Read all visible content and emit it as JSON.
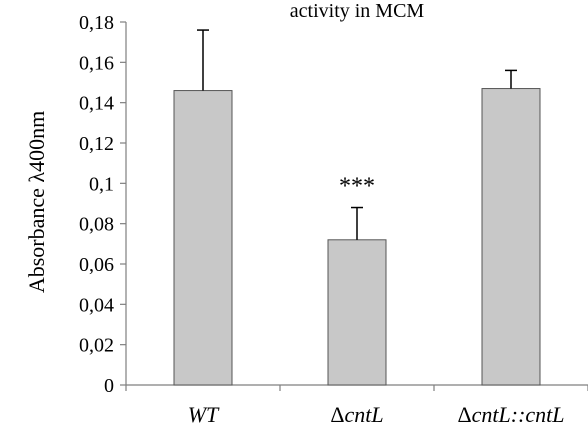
{
  "chart_data": {
    "type": "bar",
    "title": "activity in MCM",
    "ylabel": "Absorbance λ400nm",
    "xlabel": "",
    "categories": [
      "WT",
      "ΔcntL",
      "ΔcntL::cntL"
    ],
    "category_labels": [
      {
        "prefix": "",
        "italic": "WT"
      },
      {
        "prefix": "Δ",
        "italic": "cntL"
      },
      {
        "prefix": "Δ",
        "italic": "cntL::cntL"
      }
    ],
    "values": [
      0.146,
      0.072,
      0.147
    ],
    "error_bars": [
      0.03,
      0.016,
      0.009
    ],
    "annotations": [
      "",
      "***",
      ""
    ],
    "ylim": [
      0,
      0.18
    ],
    "y_ticks": [
      "0",
      "0,02",
      "0,04",
      "0,06",
      "0,08",
      "0,1",
      "0,12",
      "0,14",
      "0,16",
      "0,18"
    ],
    "grid": false,
    "legend": false,
    "colors": {
      "bar_fill": "#c8c8c8",
      "bar_stroke": "#555555",
      "axis": "#7f7f7f",
      "error_bar": "#000000"
    }
  }
}
